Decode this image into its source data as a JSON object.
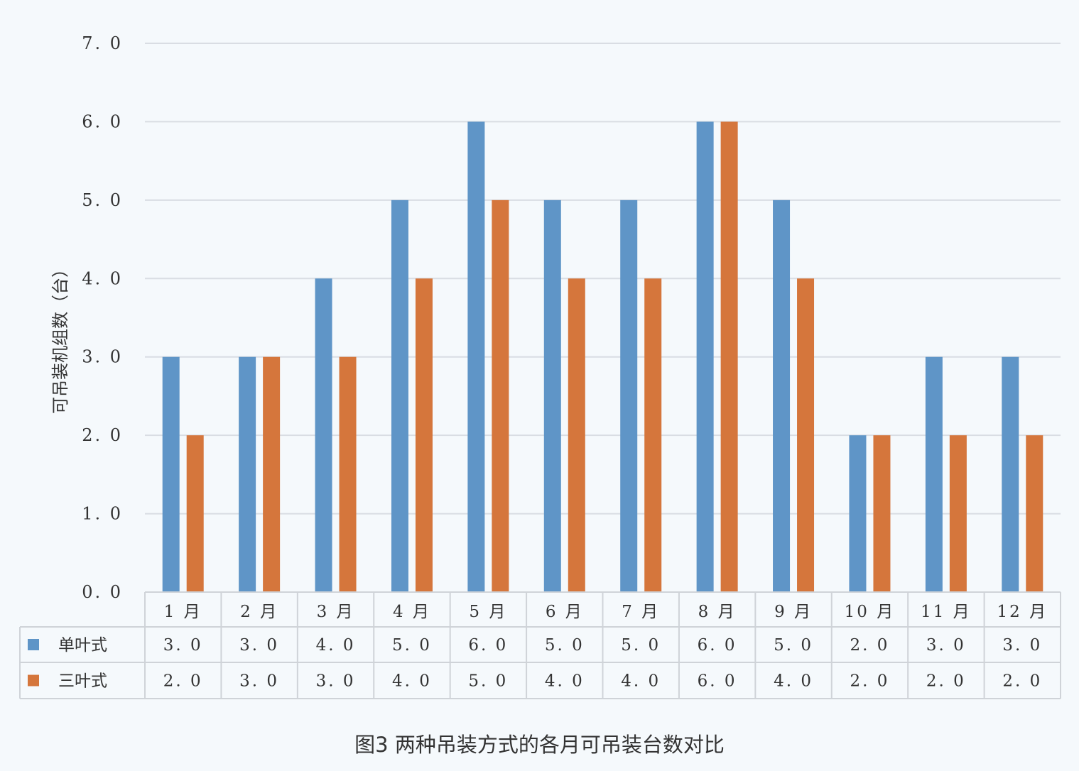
{
  "caption": "图3 两种吊装方式的各月可吊装台数对比",
  "colors": {
    "series1": "#5f95c7",
    "series2": "#d5763c",
    "grid": "#d9dde3",
    "table_border": "#cfd3d8"
  },
  "chart_data": {
    "type": "bar",
    "ylabel": "可吊装机组数（台）",
    "ylim": [
      0,
      7
    ],
    "yticks": [
      "0. 0",
      "1. 0",
      "2. 0",
      "3. 0",
      "4. 0",
      "5. 0",
      "6. 0",
      "7. 0"
    ],
    "grid": true,
    "legend": "data-table",
    "categories": [
      "1 月",
      "2 月",
      "3 月",
      "4 月",
      "5 月",
      "6 月",
      "7 月",
      "8 月",
      "9 月",
      "10 月",
      "11 月",
      "12 月"
    ],
    "series": [
      {
        "name": "单叶式",
        "values": [
          3,
          3,
          4,
          5,
          6,
          5,
          5,
          6,
          5,
          2,
          3,
          3
        ],
        "labels": [
          "3. 0",
          "3. 0",
          "4. 0",
          "5. 0",
          "6. 0",
          "5. 0",
          "5. 0",
          "6. 0",
          "5. 0",
          "2. 0",
          "3. 0",
          "3. 0"
        ]
      },
      {
        "name": "三叶式",
        "values": [
          2,
          3,
          3,
          4,
          5,
          4,
          4,
          6,
          4,
          2,
          2,
          2
        ],
        "labels": [
          "2. 0",
          "3. 0",
          "3. 0",
          "4. 0",
          "5. 0",
          "4. 0",
          "4. 0",
          "6. 0",
          "4. 0",
          "2. 0",
          "2. 0",
          "2. 0"
        ]
      }
    ]
  }
}
